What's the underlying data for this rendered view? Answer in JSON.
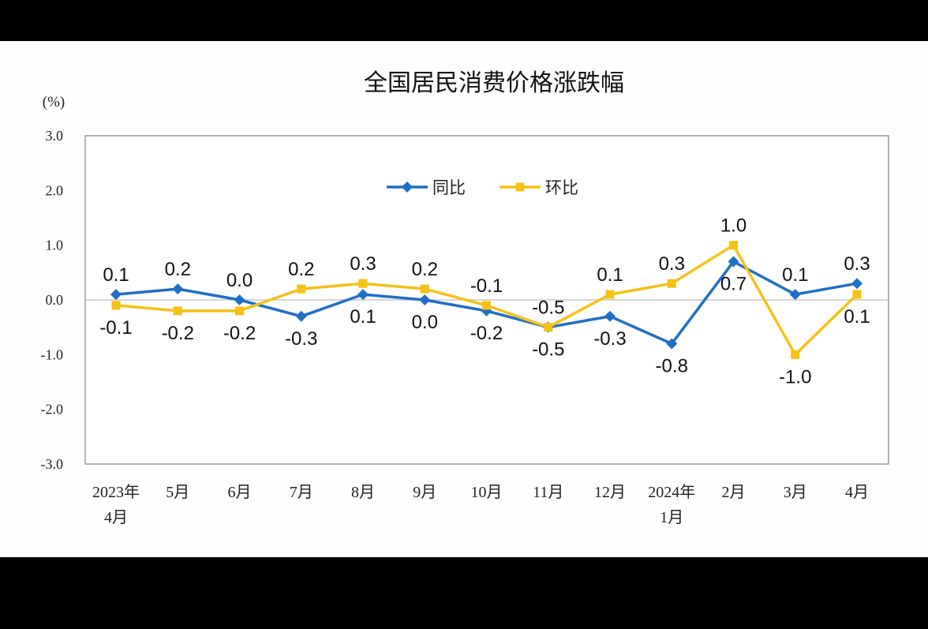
{
  "chart_data": {
    "type": "line",
    "title": "全国居民消费价格涨跌幅",
    "ylabel": "(%)",
    "ylim": [
      -3.0,
      3.0
    ],
    "yticks": [
      "3.0",
      "2.0",
      "1.0",
      "0.0",
      "-1.0",
      "-2.0",
      "-3.0"
    ],
    "ytick_values": [
      3,
      2,
      1,
      0,
      -1,
      -2,
      -3
    ],
    "categories": [
      [
        "2023年",
        "4月"
      ],
      [
        "5月"
      ],
      [
        "6月"
      ],
      [
        "7月"
      ],
      [
        "8月"
      ],
      [
        "9月"
      ],
      [
        "10月"
      ],
      [
        "11月"
      ],
      [
        "12月"
      ],
      [
        "2024年",
        "1月"
      ],
      [
        "2月"
      ],
      [
        "3月"
      ],
      [
        "4月"
      ]
    ],
    "grid": false,
    "legend_position": "top-center",
    "series": [
      {
        "name": "同比",
        "color": "#1f6fc6",
        "marker": "diamond",
        "values": [
          0.1,
          0.2,
          0.0,
          -0.3,
          0.1,
          0.0,
          -0.2,
          -0.5,
          -0.3,
          -0.8,
          0.7,
          0.1,
          0.3
        ],
        "labels": [
          "0.1",
          "0.2",
          "0.0",
          "-0.3",
          "0.1",
          "0.0",
          "-0.2",
          "-0.5",
          "-0.3",
          "-0.8",
          "0.7",
          "0.1",
          "0.3"
        ],
        "label_side": [
          "above",
          "above",
          "above",
          "below",
          "below",
          "below",
          "below",
          "below",
          "below",
          "below",
          "below",
          "above",
          "above"
        ]
      },
      {
        "name": "环比",
        "color": "#f5c116",
        "marker": "square",
        "values": [
          -0.1,
          -0.2,
          -0.2,
          0.2,
          0.3,
          0.2,
          -0.1,
          -0.5,
          0.1,
          0.3,
          1.0,
          -1.0,
          0.1
        ],
        "labels": [
          "-0.1",
          "-0.2",
          "-0.2",
          "0.2",
          "0.3",
          "0.2",
          "-0.1",
          "-0.5",
          "0.1",
          "0.3",
          "1.0",
          "-1.0",
          "0.1"
        ],
        "label_side": [
          "below",
          "below",
          "below",
          "above",
          "above",
          "above",
          "above",
          "above",
          "above",
          "above",
          "above",
          "below",
          "below"
        ]
      }
    ]
  }
}
